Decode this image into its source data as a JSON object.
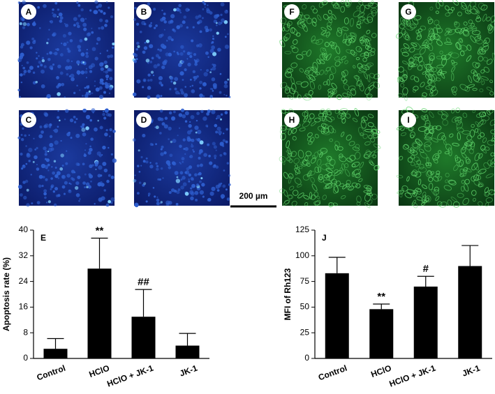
{
  "panel_labels": [
    "A",
    "B",
    "C",
    "D",
    "F",
    "G",
    "H",
    "I"
  ],
  "scale_bar": "200 µm",
  "chart_data": [
    {
      "type": "bar",
      "panel_label": "E",
      "y_label": "Apoptosis rate (%)",
      "categories": [
        "Control",
        "HClO",
        "HClO + JK-1",
        "JK-1"
      ],
      "values": [
        3,
        28,
        13,
        4
      ],
      "errors": [
        3.2,
        9.5,
        8.5,
        3.8
      ],
      "value_annotations": [
        null,
        "**",
        "##",
        null
      ],
      "color": "#000000",
      "ylim": [
        0,
        40
      ],
      "yticks": [
        0,
        8,
        16,
        24,
        32,
        40
      ]
    },
    {
      "type": "bar",
      "panel_label": "J",
      "y_label": "MFI of Rh123",
      "categories": [
        "Control",
        "HClO",
        "HClO + JK-1",
        "JK-1"
      ],
      "values": [
        83,
        48,
        70,
        90
      ],
      "errors": [
        15.5,
        5,
        10,
        20
      ],
      "value_annotations": [
        null,
        "**",
        "#",
        null
      ],
      "color": "#000000",
      "ylim": [
        0,
        125
      ],
      "yticks": [
        0,
        25,
        50,
        75,
        100,
        125
      ]
    }
  ]
}
